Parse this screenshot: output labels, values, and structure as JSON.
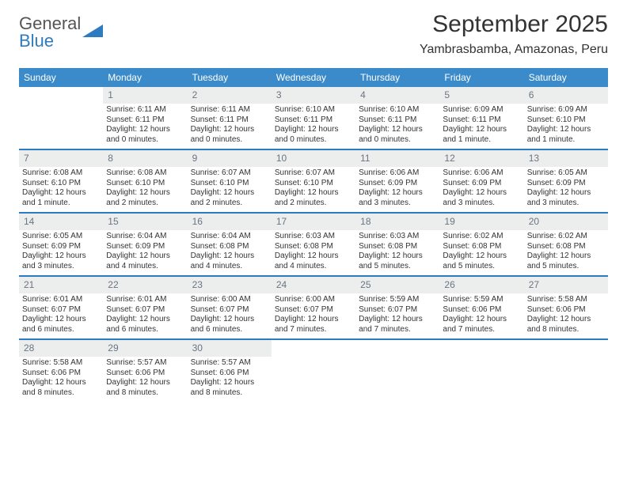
{
  "logo": {
    "part1": "General",
    "part2": "Blue"
  },
  "title": "September 2025",
  "location": "Yambrasbamba, Amazonas, Peru",
  "colors": {
    "header_bg": "#3b8bca",
    "header_text": "#ffffff",
    "daynum_bg": "#eceeee",
    "daynum_text": "#6a7580",
    "rule": "#2f7bbf",
    "logo_blue": "#2f7bbf",
    "logo_gray": "#555"
  },
  "weekdays": [
    "Sunday",
    "Monday",
    "Tuesday",
    "Wednesday",
    "Thursday",
    "Friday",
    "Saturday"
  ],
  "weeks": [
    [
      {
        "n": "",
        "empty": true
      },
      {
        "n": "1",
        "sunrise": "Sunrise: 6:11 AM",
        "sunset": "Sunset: 6:11 PM",
        "day1": "Daylight: 12 hours",
        "day2": "and 0 minutes."
      },
      {
        "n": "2",
        "sunrise": "Sunrise: 6:11 AM",
        "sunset": "Sunset: 6:11 PM",
        "day1": "Daylight: 12 hours",
        "day2": "and 0 minutes."
      },
      {
        "n": "3",
        "sunrise": "Sunrise: 6:10 AM",
        "sunset": "Sunset: 6:11 PM",
        "day1": "Daylight: 12 hours",
        "day2": "and 0 minutes."
      },
      {
        "n": "4",
        "sunrise": "Sunrise: 6:10 AM",
        "sunset": "Sunset: 6:11 PM",
        "day1": "Daylight: 12 hours",
        "day2": "and 0 minutes."
      },
      {
        "n": "5",
        "sunrise": "Sunrise: 6:09 AM",
        "sunset": "Sunset: 6:11 PM",
        "day1": "Daylight: 12 hours",
        "day2": "and 1 minute."
      },
      {
        "n": "6",
        "sunrise": "Sunrise: 6:09 AM",
        "sunset": "Sunset: 6:10 PM",
        "day1": "Daylight: 12 hours",
        "day2": "and 1 minute."
      }
    ],
    [
      {
        "n": "7",
        "sunrise": "Sunrise: 6:08 AM",
        "sunset": "Sunset: 6:10 PM",
        "day1": "Daylight: 12 hours",
        "day2": "and 1 minute."
      },
      {
        "n": "8",
        "sunrise": "Sunrise: 6:08 AM",
        "sunset": "Sunset: 6:10 PM",
        "day1": "Daylight: 12 hours",
        "day2": "and 2 minutes."
      },
      {
        "n": "9",
        "sunrise": "Sunrise: 6:07 AM",
        "sunset": "Sunset: 6:10 PM",
        "day1": "Daylight: 12 hours",
        "day2": "and 2 minutes."
      },
      {
        "n": "10",
        "sunrise": "Sunrise: 6:07 AM",
        "sunset": "Sunset: 6:10 PM",
        "day1": "Daylight: 12 hours",
        "day2": "and 2 minutes."
      },
      {
        "n": "11",
        "sunrise": "Sunrise: 6:06 AM",
        "sunset": "Sunset: 6:09 PM",
        "day1": "Daylight: 12 hours",
        "day2": "and 3 minutes."
      },
      {
        "n": "12",
        "sunrise": "Sunrise: 6:06 AM",
        "sunset": "Sunset: 6:09 PM",
        "day1": "Daylight: 12 hours",
        "day2": "and 3 minutes."
      },
      {
        "n": "13",
        "sunrise": "Sunrise: 6:05 AM",
        "sunset": "Sunset: 6:09 PM",
        "day1": "Daylight: 12 hours",
        "day2": "and 3 minutes."
      }
    ],
    [
      {
        "n": "14",
        "sunrise": "Sunrise: 6:05 AM",
        "sunset": "Sunset: 6:09 PM",
        "day1": "Daylight: 12 hours",
        "day2": "and 3 minutes."
      },
      {
        "n": "15",
        "sunrise": "Sunrise: 6:04 AM",
        "sunset": "Sunset: 6:09 PM",
        "day1": "Daylight: 12 hours",
        "day2": "and 4 minutes."
      },
      {
        "n": "16",
        "sunrise": "Sunrise: 6:04 AM",
        "sunset": "Sunset: 6:08 PM",
        "day1": "Daylight: 12 hours",
        "day2": "and 4 minutes."
      },
      {
        "n": "17",
        "sunrise": "Sunrise: 6:03 AM",
        "sunset": "Sunset: 6:08 PM",
        "day1": "Daylight: 12 hours",
        "day2": "and 4 minutes."
      },
      {
        "n": "18",
        "sunrise": "Sunrise: 6:03 AM",
        "sunset": "Sunset: 6:08 PM",
        "day1": "Daylight: 12 hours",
        "day2": "and 5 minutes."
      },
      {
        "n": "19",
        "sunrise": "Sunrise: 6:02 AM",
        "sunset": "Sunset: 6:08 PM",
        "day1": "Daylight: 12 hours",
        "day2": "and 5 minutes."
      },
      {
        "n": "20",
        "sunrise": "Sunrise: 6:02 AM",
        "sunset": "Sunset: 6:08 PM",
        "day1": "Daylight: 12 hours",
        "day2": "and 5 minutes."
      }
    ],
    [
      {
        "n": "21",
        "sunrise": "Sunrise: 6:01 AM",
        "sunset": "Sunset: 6:07 PM",
        "day1": "Daylight: 12 hours",
        "day2": "and 6 minutes."
      },
      {
        "n": "22",
        "sunrise": "Sunrise: 6:01 AM",
        "sunset": "Sunset: 6:07 PM",
        "day1": "Daylight: 12 hours",
        "day2": "and 6 minutes."
      },
      {
        "n": "23",
        "sunrise": "Sunrise: 6:00 AM",
        "sunset": "Sunset: 6:07 PM",
        "day1": "Daylight: 12 hours",
        "day2": "and 6 minutes."
      },
      {
        "n": "24",
        "sunrise": "Sunrise: 6:00 AM",
        "sunset": "Sunset: 6:07 PM",
        "day1": "Daylight: 12 hours",
        "day2": "and 7 minutes."
      },
      {
        "n": "25",
        "sunrise": "Sunrise: 5:59 AM",
        "sunset": "Sunset: 6:07 PM",
        "day1": "Daylight: 12 hours",
        "day2": "and 7 minutes."
      },
      {
        "n": "26",
        "sunrise": "Sunrise: 5:59 AM",
        "sunset": "Sunset: 6:06 PM",
        "day1": "Daylight: 12 hours",
        "day2": "and 7 minutes."
      },
      {
        "n": "27",
        "sunrise": "Sunrise: 5:58 AM",
        "sunset": "Sunset: 6:06 PM",
        "day1": "Daylight: 12 hours",
        "day2": "and 8 minutes."
      }
    ],
    [
      {
        "n": "28",
        "sunrise": "Sunrise: 5:58 AM",
        "sunset": "Sunset: 6:06 PM",
        "day1": "Daylight: 12 hours",
        "day2": "and 8 minutes."
      },
      {
        "n": "29",
        "sunrise": "Sunrise: 5:57 AM",
        "sunset": "Sunset: 6:06 PM",
        "day1": "Daylight: 12 hours",
        "day2": "and 8 minutes."
      },
      {
        "n": "30",
        "sunrise": "Sunrise: 5:57 AM",
        "sunset": "Sunset: 6:06 PM",
        "day1": "Daylight: 12 hours",
        "day2": "and 8 minutes."
      },
      {
        "n": "",
        "empty": true
      },
      {
        "n": "",
        "empty": true
      },
      {
        "n": "",
        "empty": true
      },
      {
        "n": "",
        "empty": true
      }
    ]
  ]
}
